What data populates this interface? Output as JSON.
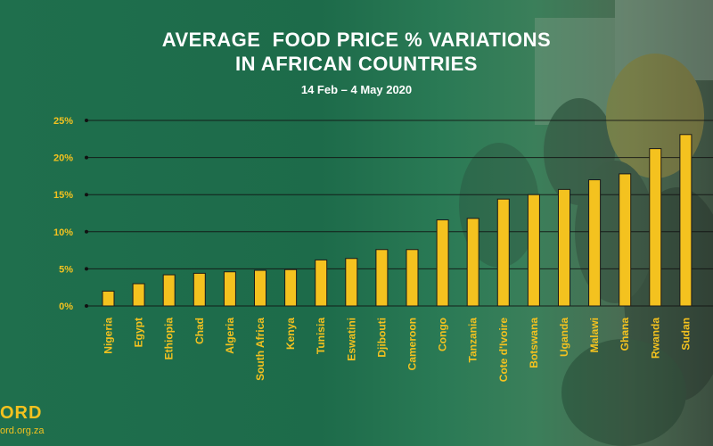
{
  "title_line1": "AVERAGE  FOOD PRICE % VARIATIONS",
  "title_line2": "IN AFRICAN COUNTRIES",
  "subtitle": "14 Feb – 4 May 2020",
  "brand": {
    "logo_text": "ORD",
    "url_text": "ord.org.za"
  },
  "colors": {
    "bar": "#f4c21f",
    "bar_outline": "#1a1a1a",
    "tick_text": "#f4c21f",
    "grid": "#111111",
    "title": "#ffffff"
  },
  "chart_data": {
    "type": "bar",
    "title": "AVERAGE  FOOD PRICE % VARIATIONS IN AFRICAN COUNTRIES",
    "subtitle": "14 Feb – 4 May 2020",
    "xlabel": "",
    "ylabel": "",
    "ylim": [
      0,
      25
    ],
    "yticks": [
      0,
      5,
      10,
      15,
      20,
      25
    ],
    "ytick_labels": [
      "0%",
      "5%",
      "10%",
      "15%",
      "20%",
      "25%"
    ],
    "grid": true,
    "legend": "none",
    "categories": [
      "Nigeria",
      "Egypt",
      "Ethiopia",
      "Chad",
      "Algeria",
      "South Africa",
      "Kenya",
      "Tunisia",
      "Eswatini",
      "Djibouti",
      "Cameroon",
      "Congo",
      "Tanzania",
      "Cote d'Ivoire",
      "Botswana",
      "Uganda",
      "Malawi",
      "Ghana",
      "Rwanda",
      "Sudan"
    ],
    "values": [
      2.0,
      3.0,
      4.2,
      4.4,
      4.6,
      4.8,
      4.9,
      6.2,
      6.4,
      7.6,
      7.6,
      11.6,
      11.8,
      14.4,
      15.0,
      15.7,
      17.0,
      17.8,
      21.2,
      23.1
    ]
  }
}
